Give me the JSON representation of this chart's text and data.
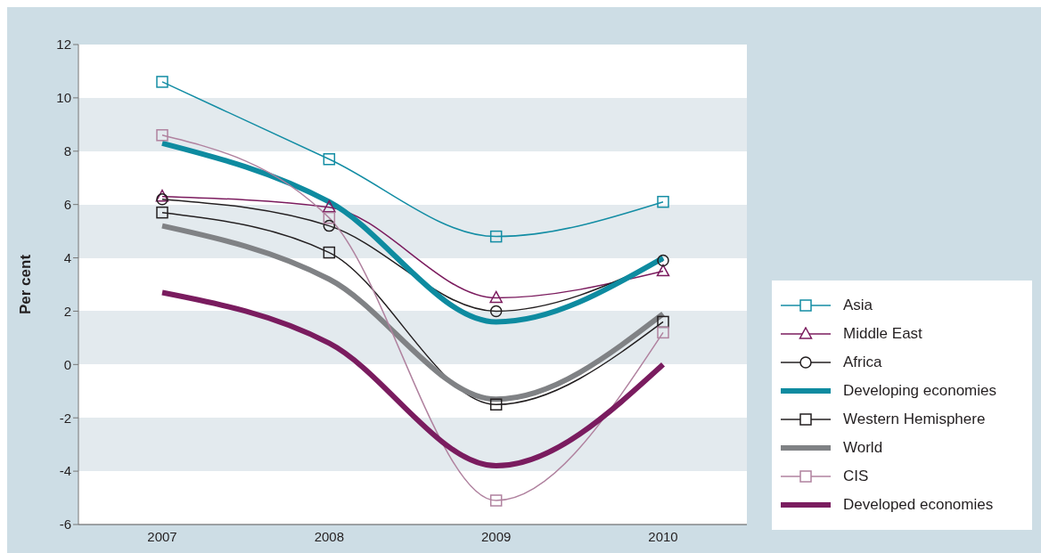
{
  "chart_data": {
    "type": "line",
    "ylabel": "Per cent",
    "categories": [
      "2007",
      "2008",
      "2009",
      "2010"
    ],
    "series": [
      {
        "name": "Asia",
        "color": "#138da4",
        "marker": "square",
        "values": [
          10.6,
          7.7,
          4.8,
          6.1
        ]
      },
      {
        "name": "Middle East",
        "color": "#7b1b5e",
        "marker": "triangle",
        "values": [
          6.3,
          5.9,
          2.5,
          3.5
        ]
      },
      {
        "name": "Africa",
        "color": "#231f20",
        "marker": "circle",
        "values": [
          6.2,
          5.2,
          2.0,
          3.9
        ]
      },
      {
        "name": "Developing economies",
        "color": "#0e8ba0",
        "marker": "none",
        "values": [
          8.3,
          6.1,
          1.6,
          4.0
        ]
      },
      {
        "name": "Western Hemisphere",
        "color": "#231f20",
        "marker": "square",
        "values": [
          5.7,
          4.2,
          -1.5,
          1.6
        ]
      },
      {
        "name": "World",
        "color": "#808285",
        "marker": "none",
        "values": [
          5.2,
          3.2,
          -1.3,
          1.9
        ]
      },
      {
        "name": "CIS",
        "color": "#b0829f",
        "marker": "square",
        "values": [
          8.6,
          5.5,
          -5.1,
          1.2
        ]
      },
      {
        "name": "Developed economies",
        "color": "#7a1c5f",
        "marker": "none",
        "values": [
          2.7,
          0.8,
          -3.8,
          0.0
        ]
      }
    ],
    "ylim": [
      -6,
      12
    ],
    "yticks": [
      -6,
      -4,
      -2,
      0,
      2,
      4,
      6,
      8,
      10,
      12
    ],
    "legend": "bottom right",
    "line_style": "solid"
  }
}
